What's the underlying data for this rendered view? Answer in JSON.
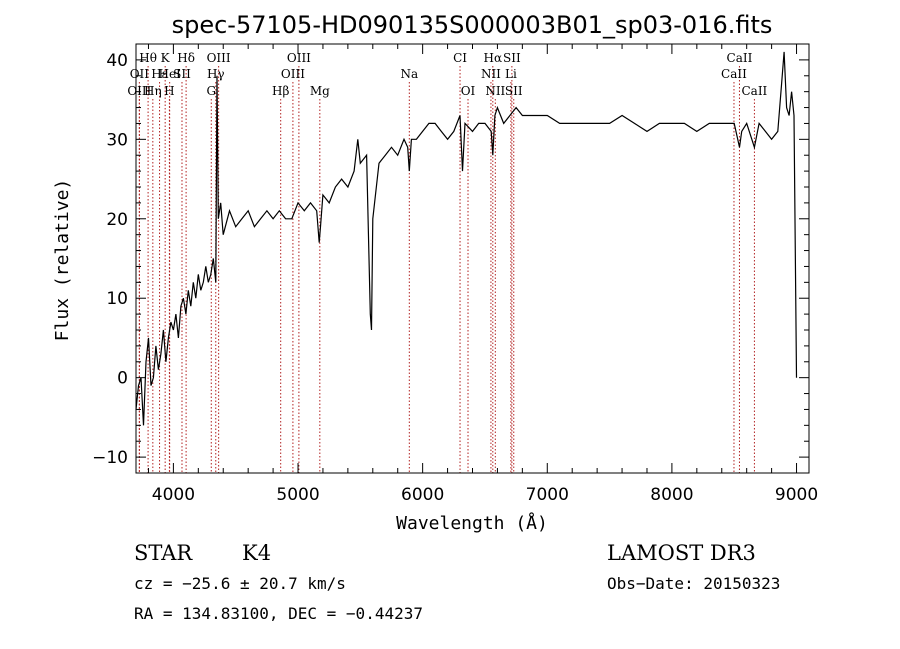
{
  "chart_data": {
    "type": "line",
    "title": "spec-57105-HD090135S000003B01_sp03-016.fits",
    "xlabel": "Wavelength (Å)",
    "ylabel": "Flux (relative)",
    "xlim": [
      3700,
      9100
    ],
    "ylim": [
      -12,
      42
    ],
    "xticks": [
      4000,
      5000,
      6000,
      7000,
      8000,
      9000
    ],
    "yticks": [
      -10,
      0,
      10,
      20,
      30,
      40
    ],
    "grid": false,
    "series": [
      {
        "color": "#000000",
        "x": [
          3700,
          3720,
          3740,
          3760,
          3780,
          3800,
          3820,
          3840,
          3860,
          3880,
          3900,
          3920,
          3940,
          3960,
          3980,
          4000,
          4020,
          4040,
          4060,
          4080,
          4100,
          4120,
          4140,
          4160,
          4180,
          4200,
          4220,
          4240,
          4260,
          4280,
          4300,
          4320,
          4340,
          4350,
          4360,
          4380,
          4400,
          4450,
          4500,
          4550,
          4600,
          4650,
          4700,
          4750,
          4800,
          4850,
          4900,
          4950,
          5000,
          5050,
          5100,
          5150,
          5170,
          5180,
          5200,
          5250,
          5300,
          5350,
          5400,
          5450,
          5480,
          5500,
          5550,
          5580,
          5590,
          5600,
          5650,
          5700,
          5750,
          5800,
          5850,
          5880,
          5893,
          5910,
          5950,
          6000,
          6050,
          6100,
          6150,
          6200,
          6250,
          6300,
          6320,
          6340,
          6400,
          6450,
          6500,
          6550,
          6563,
          6580,
          6600,
          6650,
          6700,
          6750,
          6800,
          6900,
          7000,
          7100,
          7200,
          7300,
          7400,
          7500,
          7600,
          7700,
          7800,
          7900,
          8000,
          8100,
          8200,
          8300,
          8400,
          8500,
          8542,
          8560,
          8600,
          8662,
          8700,
          8750,
          8800,
          8850,
          8880,
          8900,
          8920,
          8940,
          8960,
          8980,
          9000
        ],
        "values": [
          -4,
          -1,
          0,
          -6,
          2,
          5,
          -1,
          0,
          4,
          1,
          3,
          6,
          2,
          5,
          7,
          6,
          8,
          5,
          9,
          10,
          8,
          11,
          9,
          12,
          10,
          13,
          11,
          12,
          14,
          12,
          13,
          15,
          12,
          38,
          20,
          22,
          18,
          21,
          19,
          20,
          21,
          19,
          20,
          21,
          20,
          21,
          20,
          20,
          22,
          21,
          22,
          21,
          17,
          19,
          23,
          22,
          24,
          25,
          24,
          26,
          30,
          27,
          28,
          8,
          6,
          20,
          27,
          28,
          29,
          28,
          30,
          29,
          26,
          30,
          30,
          31,
          32,
          32,
          31,
          30,
          31,
          33,
          26,
          32,
          31,
          32,
          32,
          31,
          28,
          33,
          34,
          32,
          33,
          34,
          33,
          33,
          33,
          32,
          32,
          32,
          32,
          32,
          33,
          32,
          31,
          32,
          32,
          32,
          31,
          32,
          32,
          32,
          29,
          31,
          32,
          29,
          32,
          31,
          30,
          31,
          37,
          41,
          34,
          33,
          36,
          33,
          0
        ]
      }
    ],
    "lines": [
      {
        "label": "Hθ",
        "x": 3797,
        "row": 0
      },
      {
        "label": "K",
        "x": 3934,
        "row": 0
      },
      {
        "label": "Hδ",
        "x": 4102,
        "row": 0
      },
      {
        "label": "OIII",
        "x": 4363,
        "row": 0
      },
      {
        "label": "OIII",
        "x": 5007,
        "row": 0
      },
      {
        "label": "CI",
        "x": 6300,
        "row": 0
      },
      {
        "label": "Hα",
        "x": 6563,
        "row": 0
      },
      {
        "label": "SII",
        "x": 6716,
        "row": 0
      },
      {
        "label": "CaII",
        "x": 8542,
        "row": 0
      },
      {
        "label": "OII",
        "x": 3727,
        "row": 1
      },
      {
        "label": "Hε",
        "x": 3889,
        "row": 1
      },
      {
        "label": "HeI",
        "x": 3970,
        "row": 1
      },
      {
        "label": "SII",
        "x": 4069,
        "row": 1
      },
      {
        "label": "Hγ",
        "x": 4340,
        "row": 1
      },
      {
        "label": "OIII",
        "x": 4959,
        "row": 1
      },
      {
        "label": "Na",
        "x": 5893,
        "row": 1
      },
      {
        "label": "NII",
        "x": 6548,
        "row": 1
      },
      {
        "label": "Li",
        "x": 6708,
        "row": 1
      },
      {
        "label": "CaII",
        "x": 8498,
        "row": 1
      },
      {
        "label": "OIII",
        "x": 3727,
        "row": 2
      },
      {
        "label": "Hη",
        "x": 3835,
        "row": 2
      },
      {
        "label": "H",
        "x": 3968,
        "row": 2
      },
      {
        "label": "G",
        "x": 4304,
        "row": 2
      },
      {
        "label": "Hβ",
        "x": 4861,
        "row": 2
      },
      {
        "label": "Mg",
        "x": 5175,
        "row": 2
      },
      {
        "label": "OI",
        "x": 6364,
        "row": 2
      },
      {
        "label": "NII",
        "x": 6583,
        "row": 2
      },
      {
        "label": "SII",
        "x": 6731,
        "row": 2
      },
      {
        "label": "CaII",
        "x": 8662,
        "row": 2
      }
    ]
  },
  "info": {
    "star": "STAR",
    "subclass": "K4",
    "cz": "cz = −25.6 ± 20.7 km/s",
    "radec": "RA = 134.83100, DEC =  −0.44237",
    "survey": "LAMOST DR3",
    "obsdate": "Obs−Date: 20150323"
  }
}
